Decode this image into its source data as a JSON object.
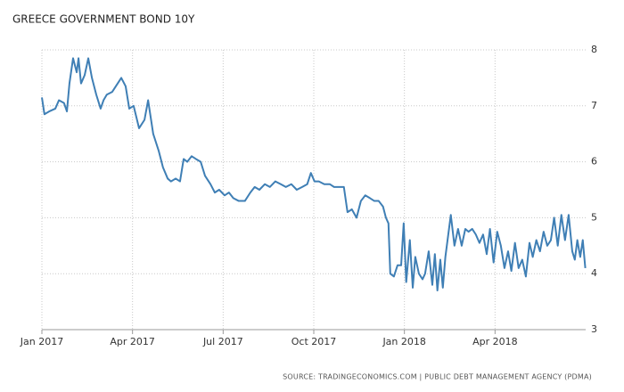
{
  "chart_data": {
    "type": "line",
    "title": "GREECE GOVERNMENT BOND 10Y",
    "source": "SOURCE: TRADINGECONOMICS.COM | PUBLIC DEBT MANAGEMENT AGENCY (PDMA)",
    "xlim": [
      2017,
      2018.5
    ],
    "xticks": [
      {
        "value": 2017,
        "label": "Jan 2017"
      },
      {
        "value": 2017.25,
        "label": "Apr 2017"
      },
      {
        "value": 2017.5,
        "label": "Jul 2017"
      },
      {
        "value": 2017.75,
        "label": "Oct 2017"
      },
      {
        "value": 2018,
        "label": "Jan 2018"
      },
      {
        "value": 2018.25,
        "label": "Apr 2018"
      }
    ],
    "ylim": [
      3,
      8
    ],
    "yticks": [
      3,
      4,
      5,
      6,
      7,
      8
    ],
    "grid": true,
    "series": [
      {
        "name": "Greece Government Bond 10Y",
        "color": "#3f7fb5",
        "x": [
          2017.0,
          2017.007,
          2017.02,
          2017.037,
          2017.047,
          2017.061,
          2017.069,
          2017.076,
          2017.086,
          2017.096,
          2017.101,
          2017.108,
          2017.118,
          2017.128,
          2017.138,
          2017.15,
          2017.162,
          2017.17,
          2017.179,
          2017.194,
          2017.209,
          2017.219,
          2017.231,
          2017.241,
          2017.253,
          2017.268,
          2017.283,
          2017.293,
          2017.307,
          2017.322,
          2017.334,
          2017.347,
          2017.356,
          2017.369,
          2017.381,
          2017.391,
          2017.401,
          2017.413,
          2017.425,
          2017.438,
          2017.45,
          2017.465,
          2017.477,
          2017.489,
          2017.504,
          2017.516,
          2017.528,
          2017.543,
          2017.56,
          2017.575,
          2017.587,
          2017.6,
          2017.615,
          2017.629,
          2017.644,
          2017.659,
          2017.673,
          2017.688,
          2017.703,
          2017.718,
          2017.732,
          2017.742,
          2017.752,
          2017.764,
          2017.779,
          2017.794,
          2017.806,
          2017.821,
          2017.833,
          2017.843,
          2017.855,
          2017.868,
          2017.88,
          2017.892,
          2017.905,
          2017.917,
          2017.929,
          2017.941,
          2017.949,
          2017.956,
          2017.961,
          2017.971,
          2017.981,
          2017.991,
          2017.998,
          2018.005,
          2018.015,
          2018.023,
          2018.03,
          2018.04,
          2018.05,
          2018.057,
          2018.067,
          2018.077,
          2018.084,
          2018.091,
          2018.099,
          2018.106,
          2018.113,
          2018.121,
          2018.128,
          2018.138,
          2018.148,
          2018.158,
          2018.168,
          2018.177,
          2018.187,
          2018.197,
          2018.207,
          2018.217,
          2018.227,
          2018.236,
          2018.246,
          2018.256,
          2018.266,
          2018.276,
          2018.286,
          2018.295,
          2018.305,
          2018.315,
          2018.325,
          2018.335,
          2018.345,
          2018.354,
          2018.364,
          2018.374,
          2018.384,
          2018.394,
          2018.404,
          2018.413,
          2018.423,
          2018.433,
          2018.443,
          2018.453,
          2018.463,
          2018.47,
          2018.477,
          2018.485,
          2018.492,
          2018.499
        ],
        "values": [
          7.15,
          6.85,
          6.9,
          6.95,
          7.1,
          7.05,
          6.9,
          7.4,
          7.85,
          7.6,
          7.85,
          7.4,
          7.55,
          7.85,
          7.5,
          7.2,
          6.95,
          7.1,
          7.2,
          7.25,
          7.4,
          7.5,
          7.35,
          6.95,
          7.0,
          6.6,
          6.75,
          7.1,
          6.5,
          6.2,
          5.9,
          5.7,
          5.65,
          5.7,
          5.65,
          6.05,
          6.0,
          6.1,
          6.05,
          6.0,
          5.75,
          5.6,
          5.45,
          5.5,
          5.4,
          5.45,
          5.35,
          5.3,
          5.3,
          5.45,
          5.55,
          5.5,
          5.6,
          5.55,
          5.65,
          5.6,
          5.55,
          5.6,
          5.5,
          5.55,
          5.6,
          5.8,
          5.65,
          5.65,
          5.6,
          5.6,
          5.55,
          5.55,
          5.55,
          5.1,
          5.15,
          5.0,
          5.3,
          5.4,
          5.35,
          5.3,
          5.3,
          5.2,
          5.0,
          4.9,
          4.0,
          3.95,
          4.15,
          4.15,
          4.9,
          3.85,
          4.6,
          3.75,
          4.3,
          4.0,
          3.9,
          4.0,
          4.4,
          3.8,
          4.35,
          3.7,
          4.25,
          3.75,
          4.3,
          4.7,
          5.05,
          4.5,
          4.8,
          4.5,
          4.8,
          4.75,
          4.8,
          4.7,
          4.55,
          4.7,
          4.35,
          4.8,
          4.2,
          4.75,
          4.5,
          4.1,
          4.4,
          4.05,
          4.55,
          4.1,
          4.25,
          3.95,
          4.55,
          4.3,
          4.6,
          4.4,
          4.75,
          4.5,
          4.6,
          5.0,
          4.5,
          5.05,
          4.6,
          5.05,
          4.4,
          4.25,
          4.6,
          4.3,
          4.6,
          4.1
        ]
      }
    ]
  }
}
